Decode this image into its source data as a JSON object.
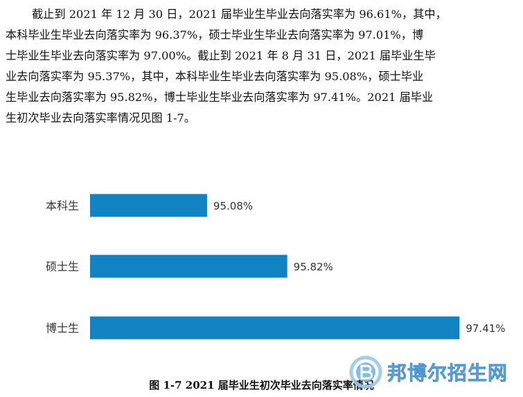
{
  "paragraph": {
    "lines": [
      "截止到 2021 年 12 月 30 日，2021 届毕业生毕业去向落实率为 96.61%，其中，",
      "本科毕业生毕业去向落实率为 96.37%，硕士毕业生毕业去向落实率为 97.01%，博",
      "士毕业生毕业去向落实率为 97.00%。截止到 2021 年 8 月 31 日，2021 届毕业生毕",
      "业去向落实率为 95.37%，其中，本科毕业生毕业去向落实率为 95.08%，硕士毕业",
      "生毕业去向落实率为 95.82%，博士毕业生毕业去向落实率为 97.41%。2021 届毕业",
      "生初次毕业去向落实率情况见图 1-7。"
    ]
  },
  "chart_data": {
    "type": "bar",
    "orientation": "horizontal",
    "categories": [
      "本科生",
      "硕士生",
      "博士生"
    ],
    "values": [
      95.08,
      95.82,
      97.41
    ],
    "value_labels": [
      "95.08%",
      "95.82%",
      "97.41%"
    ],
    "bar_color": "#1183c2",
    "xlim": [
      94,
      97.9
    ],
    "grid": false,
    "legend": "none"
  },
  "caption": "图 1-7   2021 届毕业生初次毕业去向落实率情况",
  "watermark": {
    "text": "邦博尔招生网",
    "color": "#6ab0e0"
  }
}
